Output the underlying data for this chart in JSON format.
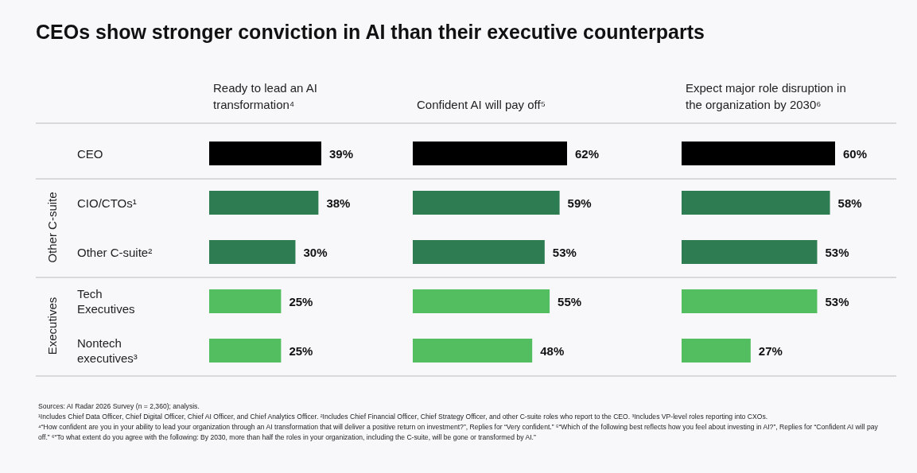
{
  "chart_data": [
    {
      "type": "bar",
      "orientation": "horizontal",
      "title": "CEOs show stronger conviction in AI than their executive counterparts",
      "subtitle": "Ready to lead an AI transformation⁴",
      "categories": [
        "CEO",
        "CIO/CTOs¹",
        "Other C-suite²",
        "Tech Executives",
        "Nontech executives³"
      ],
      "values": [
        39,
        38,
        30,
        25,
        25
      ],
      "value_labels": [
        "39%",
        "38%",
        "30%",
        "25%",
        "25%"
      ],
      "colors": [
        "#000000",
        "#2e7d52",
        "#2e7d52",
        "#52be5f",
        "#52be5f"
      ],
      "tick_labels": "y",
      "annotations": [
        "Other C-suite",
        "Executives"
      ]
    },
    {
      "type": "bar",
      "orientation": "horizontal",
      "subtitle": "Confident AI will pay off⁵",
      "categories": [
        "CEO",
        "CIO/CTOs¹",
        "Other C-suite²",
        "Tech Executives",
        "Nontech executives³"
      ],
      "values": [
        62,
        59,
        53,
        55,
        48
      ],
      "value_labels": [
        "62%",
        "59%",
        "53%",
        "55%",
        "48%"
      ],
      "colors": [
        "#000000",
        "#2e7d52",
        "#2e7d52",
        "#52be5f",
        "#52be5f"
      ],
      "tick_labels": false
    },
    {
      "type": "bar",
      "orientation": "horizontal",
      "subtitle": "Expect major role disruption in the organization by 2030⁶",
      "categories": [
        "CEO",
        "CIO/CTOs¹",
        "Other C-suite²",
        "Tech Executives",
        "Nontech executives³"
      ],
      "values": [
        60,
        58,
        53,
        53,
        27
      ],
      "value_labels": [
        "60%",
        "58%",
        "53%",
        "53%",
        "27%"
      ],
      "colors": [
        "#000000",
        "#2e7d52",
        "#2e7d52",
        "#52be5f",
        "#52be5f"
      ],
      "tick_labels": false,
      "annotations": [
        "Sources: AI Radar 2026 Survey (n = 2,360); analysis.",
        "¹Includes Chief Data Officer, Chief Digital Officer, Chief AI Officer, and Chief Analytics Officer. ²Includes Chief Financial Officer, Chief Strategy Officer, and other C-suite roles who report to the CEO. ³Includes VP-level roles reporting into CXOs.",
        "⁴“How confident are you in your ability to lead your organization through an AI transformation that will deliver a positive return on investment?”, Replies for “Very confident.” ⁵“Which of the following best reflects how you feel about investing in AI?”, Replies for “Confident AI will pay off.” ⁶“To what extent do you agree with the following: By 2030, more than half the roles in your organization, including the C-suite, will be gone or transformed by AI.”"
      ]
    }
  ]
}
